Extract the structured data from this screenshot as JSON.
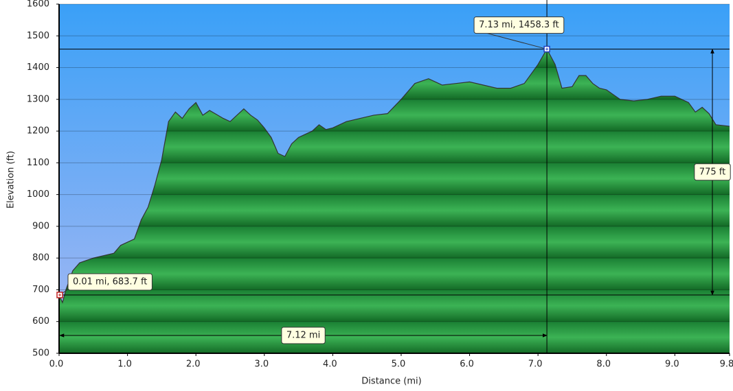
{
  "chart_data": {
    "type": "area",
    "x_label": "Distance   (mi)",
    "y_label": "Elevation (ft)",
    "xlim": [
      0,
      9.8
    ],
    "ylim": [
      500,
      1600
    ],
    "xticks": [
      {
        "value": 0,
        "label": "0.0"
      },
      {
        "value": 1,
        "label": "1.0"
      },
      {
        "value": 2,
        "label": "2.0"
      },
      {
        "value": 3,
        "label": "3.0"
      },
      {
        "value": 4,
        "label": "4.0"
      },
      {
        "value": 5,
        "label": "5.0"
      },
      {
        "value": 6,
        "label": "6.0"
      },
      {
        "value": 7,
        "label": "7.0"
      },
      {
        "value": 8,
        "label": "8.0"
      },
      {
        "value": 9,
        "label": "9.0"
      },
      9.8
    ],
    "yticks": [
      500,
      600,
      700,
      800,
      900,
      1000,
      1100,
      1200,
      1300,
      1400,
      1500,
      1600
    ],
    "grid": true,
    "color": "#2a9a45",
    "x": [
      0,
      0.05,
      0.1,
      0.2,
      0.3,
      0.5,
      0.8,
      0.9,
      1.1,
      1.2,
      1.3,
      1.4,
      1.5,
      1.6,
      1.7,
      1.8,
      1.9,
      2.0,
      2.1,
      2.2,
      2.4,
      2.5,
      2.6,
      2.7,
      2.8,
      2.9,
      3.0,
      3.1,
      3.2,
      3.3,
      3.4,
      3.5,
      3.6,
      3.7,
      3.8,
      3.9,
      4.0,
      4.2,
      4.4,
      4.6,
      4.8,
      5.0,
      5.2,
      5.4,
      5.6,
      5.8,
      6.0,
      6.2,
      6.4,
      6.6,
      6.8,
      7.0,
      7.13,
      7.25,
      7.35,
      7.5,
      7.6,
      7.7,
      7.8,
      7.9,
      8.0,
      8.2,
      8.4,
      8.6,
      8.8,
      9.0,
      9.2,
      9.3,
      9.4,
      9.5,
      9.6,
      9.8
    ],
    "values": [
      684,
      660,
      700,
      760,
      785,
      800,
      815,
      840,
      860,
      920,
      960,
      1030,
      1110,
      1230,
      1260,
      1240,
      1270,
      1290,
      1250,
      1265,
      1240,
      1230,
      1250,
      1270,
      1250,
      1235,
      1210,
      1180,
      1130,
      1120,
      1160,
      1180,
      1190,
      1200,
      1220,
      1205,
      1210,
      1230,
      1240,
      1250,
      1255,
      1300,
      1350,
      1365,
      1345,
      1350,
      1355,
      1345,
      1335,
      1335,
      1350,
      1410,
      1458.3,
      1410,
      1335,
      1340,
      1375,
      1375,
      1350,
      1335,
      1330,
      1300,
      1295,
      1300,
      1310,
      1310,
      1290,
      1260,
      1275,
      1255,
      1220,
      1215
    ],
    "markers": [
      {
        "x": 0.01,
        "y": 683.7,
        "label": "0.01 mi, 683.7 ft"
      },
      {
        "x": 7.13,
        "y": 1458.3,
        "label": "7.13 mi, 1458.3 ft"
      }
    ],
    "distance": {
      "value": 7.12,
      "label": "7.12 mi"
    },
    "climb": {
      "value": 775,
      "label": "775 ft"
    }
  }
}
